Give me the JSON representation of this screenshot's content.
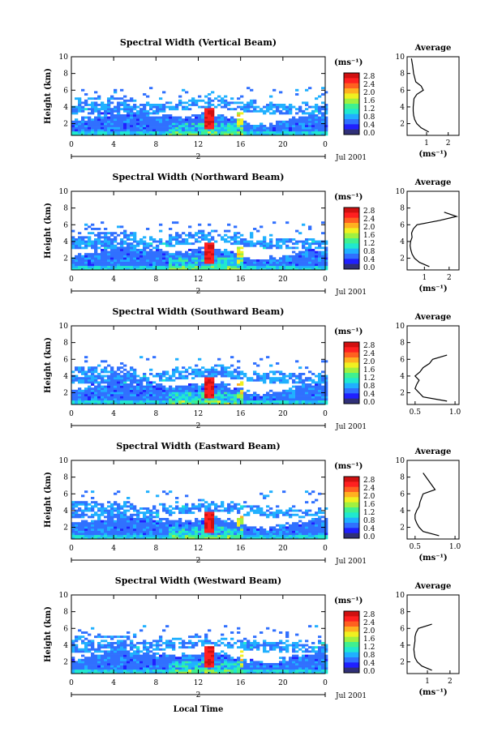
{
  "figure": {
    "xlabel": "Local Time",
    "date_label": "Jul 2001",
    "day_label": "2",
    "ylabel": "Height (km)",
    "unit_label": "(ms⁻¹)",
    "average_title": "Average",
    "colorbar_ticks": [
      "2.8",
      "2.4",
      "2.0",
      "1.6",
      "1.2",
      "0.8",
      "0.4",
      "0.0"
    ],
    "colorbar_colors": [
      "#303078",
      "#2020ff",
      "#3070ff",
      "#20b0ff",
      "#20e8d0",
      "#40f090",
      "#a0f040",
      "#f0f020",
      "#ffb020",
      "#ff6020",
      "#ff2020",
      "#d01010"
    ],
    "xticks": [
      "0",
      "4",
      "8",
      "12",
      "16",
      "20",
      "0"
    ],
    "yticks": [
      "2",
      "4",
      "6",
      "8",
      "10"
    ]
  },
  "chart_data": [
    {
      "type": "heatmap",
      "title": "Spectral Width (Vertical Beam)",
      "xlabel": "Local Time",
      "ylabel": "Height (km)",
      "xlim": [
        0,
        24
      ],
      "ylim": [
        0.6,
        10
      ],
      "colorbar": {
        "label": "(ms⁻¹)",
        "range": [
          0.0,
          2.8
        ]
      },
      "profile": {
        "title": "Average",
        "xlabel": "(ms⁻¹)",
        "xlim": [
          0.1,
          2.5
        ],
        "xticks": [
          "1",
          "2"
        ],
        "heights": [
          1,
          1.5,
          2,
          2.5,
          3,
          3.5,
          4,
          4.5,
          5,
          5.5,
          6,
          6.5,
          7,
          8,
          9,
          9.8
        ],
        "values": [
          1.1,
          0.75,
          0.55,
          0.45,
          0.4,
          0.38,
          0.38,
          0.4,
          0.42,
          0.55,
          0.85,
          0.75,
          0.5,
          0.4,
          0.35,
          0.3
        ]
      }
    },
    {
      "type": "heatmap",
      "title": "Spectral Width (Northward Beam)",
      "xlabel": "Local Time",
      "ylabel": "Height (km)",
      "xlim": [
        0,
        24
      ],
      "ylim": [
        0.6,
        10
      ],
      "colorbar": {
        "label": "(ms⁻¹)",
        "range": [
          0.0,
          2.8
        ]
      },
      "profile": {
        "title": "Average",
        "xlabel": "(ms⁻¹)",
        "xlim": [
          0.3,
          2.4
        ],
        "xticks": [
          "1",
          "2"
        ],
        "heights": [
          1,
          1.5,
          2,
          2.5,
          3,
          3.5,
          4,
          4.5,
          5,
          5.5,
          6,
          6.5,
          7,
          7.5
        ],
        "values": [
          1.2,
          0.8,
          0.6,
          0.5,
          0.45,
          0.42,
          0.44,
          0.5,
          0.48,
          0.55,
          0.7,
          1.6,
          2.3,
          1.8
        ]
      }
    },
    {
      "type": "heatmap",
      "title": "Spectral Width (Southward Beam)",
      "xlabel": "Local Time",
      "ylabel": "Height (km)",
      "xlim": [
        0,
        24
      ],
      "ylim": [
        0.6,
        10
      ],
      "colorbar": {
        "label": "(ms⁻¹)",
        "range": [
          0.0,
          2.8
        ]
      },
      "profile": {
        "title": "Average",
        "xlabel": "",
        "xlim": [
          0.4,
          1.05
        ],
        "xticks": [
          "0.5",
          "1.0"
        ],
        "heights": [
          1,
          1.5,
          2,
          2.5,
          3,
          3.5,
          4,
          4.5,
          5,
          5.5,
          6,
          6.5
        ],
        "values": [
          0.9,
          0.6,
          0.55,
          0.5,
          0.52,
          0.55,
          0.5,
          0.56,
          0.6,
          0.68,
          0.72,
          0.9
        ]
      }
    },
    {
      "type": "heatmap",
      "title": "Spectral Width (Eastward Beam)",
      "xlabel": "Local Time",
      "ylabel": "Height (km)",
      "xlim": [
        0,
        24
      ],
      "ylim": [
        0.6,
        10
      ],
      "colorbar": {
        "label": "(ms⁻¹)",
        "range": [
          0.0,
          2.8
        ]
      },
      "profile": {
        "title": "Average",
        "xlabel": "(ms⁻¹)",
        "xlim": [
          0.4,
          1.05
        ],
        "xticks": [
          "0.5",
          "1.0"
        ],
        "heights": [
          1,
          1.5,
          2,
          2.5,
          3,
          3.5,
          4,
          4.5,
          5,
          5.5,
          6,
          6.5,
          8.5
        ],
        "values": [
          0.8,
          0.6,
          0.55,
          0.52,
          0.5,
          0.5,
          0.52,
          0.55,
          0.56,
          0.58,
          0.6,
          0.75,
          0.6
        ]
      }
    },
    {
      "type": "heatmap",
      "title": "Spectral Width (Westward Beam)",
      "xlabel": "Local Time",
      "ylabel": "Height (km)",
      "xlim": [
        0,
        24
      ],
      "ylim": [
        0.6,
        10
      ],
      "colorbar": {
        "label": "(ms⁻¹)",
        "range": [
          0.0,
          2.8
        ]
      },
      "profile": {
        "title": "Average",
        "xlabel": "(ms⁻¹)",
        "xlim": [
          0.1,
          2.4
        ],
        "xticks": [
          "1",
          "2"
        ],
        "heights": [
          1,
          1.5,
          2,
          2.5,
          3,
          3.5,
          4,
          4.5,
          5,
          5.5,
          6,
          6.5
        ],
        "values": [
          1.2,
          0.75,
          0.55,
          0.45,
          0.42,
          0.4,
          0.42,
          0.45,
          0.45,
          0.5,
          0.6,
          1.2
        ]
      }
    }
  ]
}
